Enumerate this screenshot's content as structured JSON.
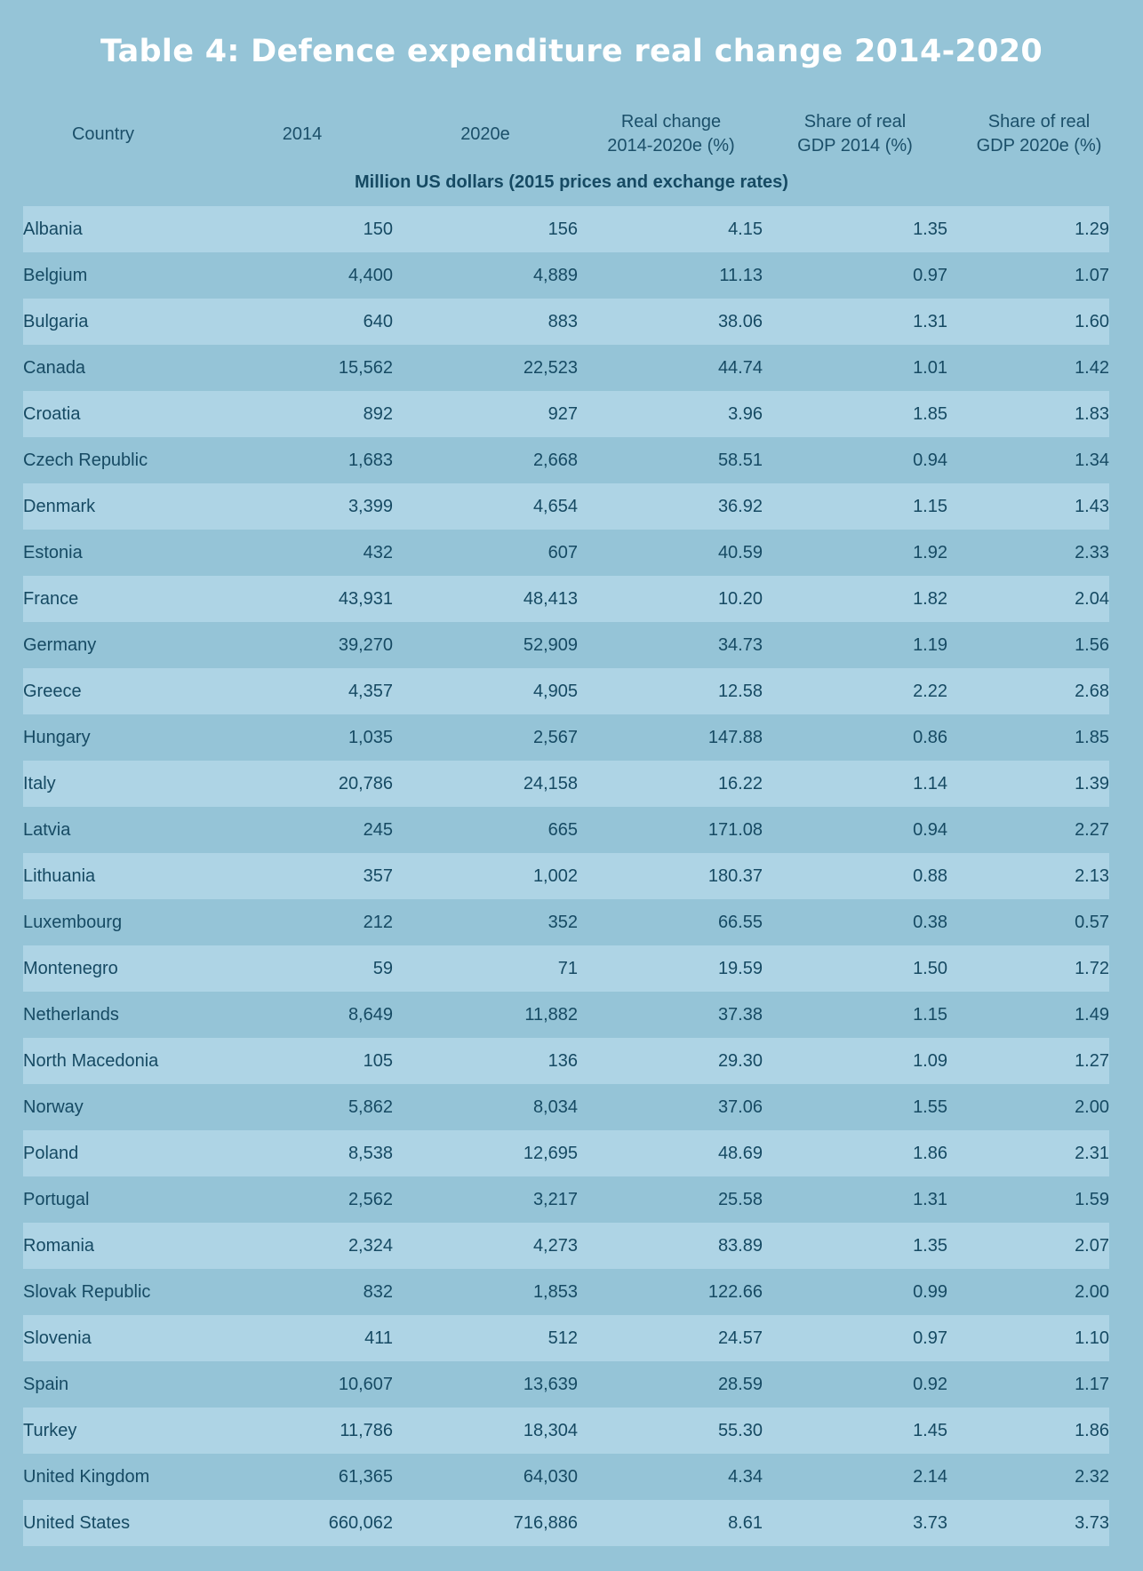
{
  "title": "Table 4: Defence expenditure real change 2014-2020",
  "subtitle": "Million US dollars (2015 prices and exchange rates)",
  "columns": [
    "Country",
    "2014",
    "2020e",
    "Real change\n2014-2020e (%)",
    "Share of real\nGDP 2014 (%)",
    "Share of real\nGDP 2020e (%)"
  ],
  "colors": {
    "background": "#95c4d7",
    "row_light": "#aed4e5",
    "row_dark": "#95c4d7",
    "text": "#164a63",
    "title": "#ffffff"
  },
  "chart_data": {
    "type": "table",
    "title": "Table 4: Defence expenditure real change 2014-2020",
    "subtitle": "Million US dollars (2015 prices and exchange rates)",
    "rows": [
      [
        "Albania",
        "150",
        "156",
        "4.15",
        "1.35",
        "1.29"
      ],
      [
        "Belgium",
        "4,400",
        "4,889",
        "11.13",
        "0.97",
        "1.07"
      ],
      [
        "Bulgaria",
        "640",
        "883",
        "38.06",
        "1.31",
        "1.60"
      ],
      [
        "Canada",
        "15,562",
        "22,523",
        "44.74",
        "1.01",
        "1.42"
      ],
      [
        "Croatia",
        "892",
        "927",
        "3.96",
        "1.85",
        "1.83"
      ],
      [
        "Czech Republic",
        "1,683",
        "2,668",
        "58.51",
        "0.94",
        "1.34"
      ],
      [
        "Denmark",
        "3,399",
        "4,654",
        "36.92",
        "1.15",
        "1.43"
      ],
      [
        "Estonia",
        "432",
        "607",
        "40.59",
        "1.92",
        "2.33"
      ],
      [
        "France",
        "43,931",
        "48,413",
        "10.20",
        "1.82",
        "2.04"
      ],
      [
        "Germany",
        "39,270",
        "52,909",
        "34.73",
        "1.19",
        "1.56"
      ],
      [
        "Greece",
        "4,357",
        "4,905",
        "12.58",
        "2.22",
        "2.68"
      ],
      [
        "Hungary",
        "1,035",
        "2,567",
        "147.88",
        "0.86",
        "1.85"
      ],
      [
        "Italy",
        "20,786",
        "24,158",
        "16.22",
        "1.14",
        "1.39"
      ],
      [
        "Latvia",
        "245",
        "665",
        "171.08",
        "0.94",
        "2.27"
      ],
      [
        "Lithuania",
        "357",
        "1,002",
        "180.37",
        "0.88",
        "2.13"
      ],
      [
        "Luxembourg",
        "212",
        "352",
        "66.55",
        "0.38",
        "0.57"
      ],
      [
        "Montenegro",
        "59",
        "71",
        "19.59",
        "1.50",
        "1.72"
      ],
      [
        "Netherlands",
        "8,649",
        "11,882",
        "37.38",
        "1.15",
        "1.49"
      ],
      [
        "North Macedonia",
        "105",
        "136",
        "29.30",
        "1.09",
        "1.27"
      ],
      [
        "Norway",
        "5,862",
        "8,034",
        "37.06",
        "1.55",
        "2.00"
      ],
      [
        "Poland",
        "8,538",
        "12,695",
        "48.69",
        "1.86",
        "2.31"
      ],
      [
        "Portugal",
        "2,562",
        "3,217",
        "25.58",
        "1.31",
        "1.59"
      ],
      [
        "Romania",
        "2,324",
        "4,273",
        "83.89",
        "1.35",
        "2.07"
      ],
      [
        "Slovak Republic",
        "832",
        "1,853",
        "122.66",
        "0.99",
        "2.00"
      ],
      [
        "Slovenia",
        "411",
        "512",
        "24.57",
        "0.97",
        "1.10"
      ],
      [
        "Spain",
        "10,607",
        "13,639",
        "28.59",
        "0.92",
        "1.17"
      ],
      [
        "Turkey",
        "11,786",
        "18,304",
        "55.30",
        "1.45",
        "1.86"
      ],
      [
        "United Kingdom",
        "61,365",
        "64,030",
        "4.34",
        "2.14",
        "2.32"
      ],
      [
        "United States",
        "660,062",
        "716,886",
        "8.61",
        "3.73",
        "3.73"
      ]
    ]
  }
}
